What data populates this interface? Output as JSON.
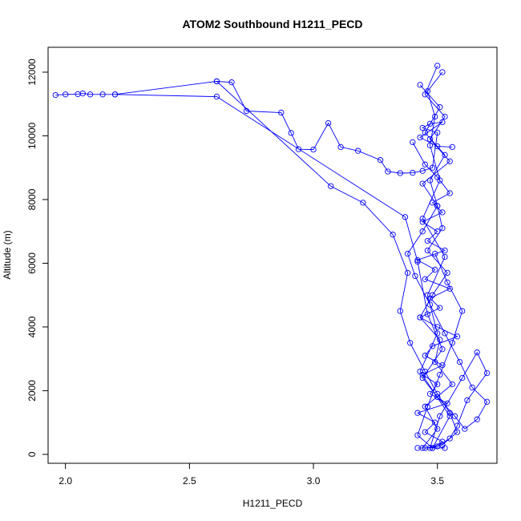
{
  "chart_data": {
    "type": "line",
    "title": "ATOM2 Southbound H1211_PECD",
    "xlabel": "H1211_PECD",
    "ylabel": "Altitude (m)",
    "xlim": [
      1.93,
      3.74
    ],
    "ylim": [
      -280,
      12780
    ],
    "xticks": [
      2.0,
      2.5,
      3.0,
      3.5
    ],
    "xtick_labels": [
      "2.0",
      "2.5",
      "3.0",
      "3.5"
    ],
    "yticks": [
      0,
      2000,
      4000,
      6000,
      8000,
      10000,
      12000
    ],
    "ytick_labels": [
      "0",
      "2000",
      "4000",
      "6000",
      "8000",
      "10000",
      "12000"
    ],
    "grid": false,
    "line_color": "#0000ff",
    "marker": "open-circle",
    "series": [
      {
        "x": [
          1.96,
          2.0,
          2.05,
          2.07,
          2.1,
          2.15,
          2.2,
          2.61,
          2.67,
          2.73,
          2.87,
          2.91,
          2.94,
          3.0,
          3.06,
          3.11,
          3.18,
          3.27,
          3.3,
          3.35,
          3.4,
          3.44,
          3.48,
          3.5,
          3.44,
          3.47,
          3.52,
          3.43,
          3.5,
          3.56
        ],
        "y": [
          11280,
          11300,
          11310,
          11330,
          11300,
          11300,
          11300,
          11710,
          11680,
          10780,
          10730,
          10090,
          9580,
          9570,
          10400,
          9650,
          9530,
          9240,
          8880,
          8830,
          8840,
          8900,
          9000,
          10100,
          10250,
          10380,
          10430,
          9950,
          9670,
          9650
        ]
      },
      {
        "x": [
          3.4,
          3.45,
          3.5,
          3.55,
          3.48,
          3.52,
          3.44,
          3.5,
          3.46,
          3.53,
          3.42,
          3.49,
          3.45,
          3.55,
          3.47,
          3.51,
          3.43,
          3.5,
          3.58,
          3.48,
          3.45,
          3.52,
          3.44,
          3.5,
          3.47,
          3.54,
          3.42,
          3.49,
          3.45,
          3.52,
          3.48,
          3.55,
          3.43,
          3.5,
          3.46,
          3.53,
          3.44,
          3.51,
          3.47,
          3.49,
          3.46,
          3.52
        ],
        "y": [
          9800,
          9100,
          8700,
          8200,
          7900,
          7600,
          7300,
          7000,
          6700,
          6400,
          6100,
          5800,
          5500,
          5200,
          4900,
          4600,
          4300,
          4000,
          3700,
          3400,
          3100,
          2800,
          2500,
          2200,
          1900,
          1600,
          1300,
          1000,
          700,
          400,
          200,
          1200,
          2600,
          3800,
          5000,
          6200,
          7400,
          8600,
          9700,
          10600,
          11400,
          12000
        ]
      },
      {
        "x": [
          3.5,
          3.45,
          3.53,
          3.47,
          3.55,
          3.44,
          3.5,
          3.52,
          3.46,
          3.54,
          3.48,
          3.43,
          3.51,
          3.49,
          3.56,
          3.45,
          3.5,
          3.44,
          3.53,
          3.47,
          3.51,
          3.6,
          3.66,
          3.7,
          3.62,
          3.58,
          3.55,
          3.5,
          3.45,
          3.42
        ],
        "y": [
          12200,
          11300,
          10600,
          9900,
          9200,
          8500,
          7800,
          7100,
          6400,
          5700,
          5000,
          4300,
          3600,
          2900,
          2200,
          1500,
          800,
          200,
          200,
          200,
          1200,
          2400,
          3200,
          2550,
          1700,
          900,
          500,
          250,
          200,
          200
        ]
      },
      {
        "x": [
          2.2,
          2.61,
          3.37,
          3.42,
          3.46,
          3.52,
          3.44,
          3.5,
          3.57,
          3.61,
          3.66,
          3.7,
          3.64,
          3.59,
          3.53,
          3.47,
          3.41,
          3.38,
          3.44,
          3.5,
          3.47,
          3.53,
          3.45,
          3.51,
          3.43
        ],
        "y": [
          11300,
          11230,
          7450,
          6050,
          4400,
          3300,
          2400,
          1800,
          1200,
          800,
          1100,
          1650,
          2100,
          2900,
          3800,
          4700,
          5600,
          6300,
          7000,
          7800,
          8600,
          9400,
          10100,
          10900,
          11600
        ]
      },
      {
        "x": [
          2.61,
          3.07,
          3.2,
          3.32,
          3.38,
          3.35,
          3.39,
          3.45,
          3.5,
          3.55,
          3.58,
          3.52,
          3.48,
          3.42,
          3.46,
          3.51,
          3.56,
          3.6,
          3.54,
          3.49
        ],
        "y": [
          11710,
          8420,
          7900,
          6900,
          5700,
          4500,
          3500,
          2600,
          1900,
          1300,
          700,
          300,
          200,
          600,
          1500,
          2500,
          3500,
          4500,
          5400,
          6300
        ]
      }
    ]
  }
}
